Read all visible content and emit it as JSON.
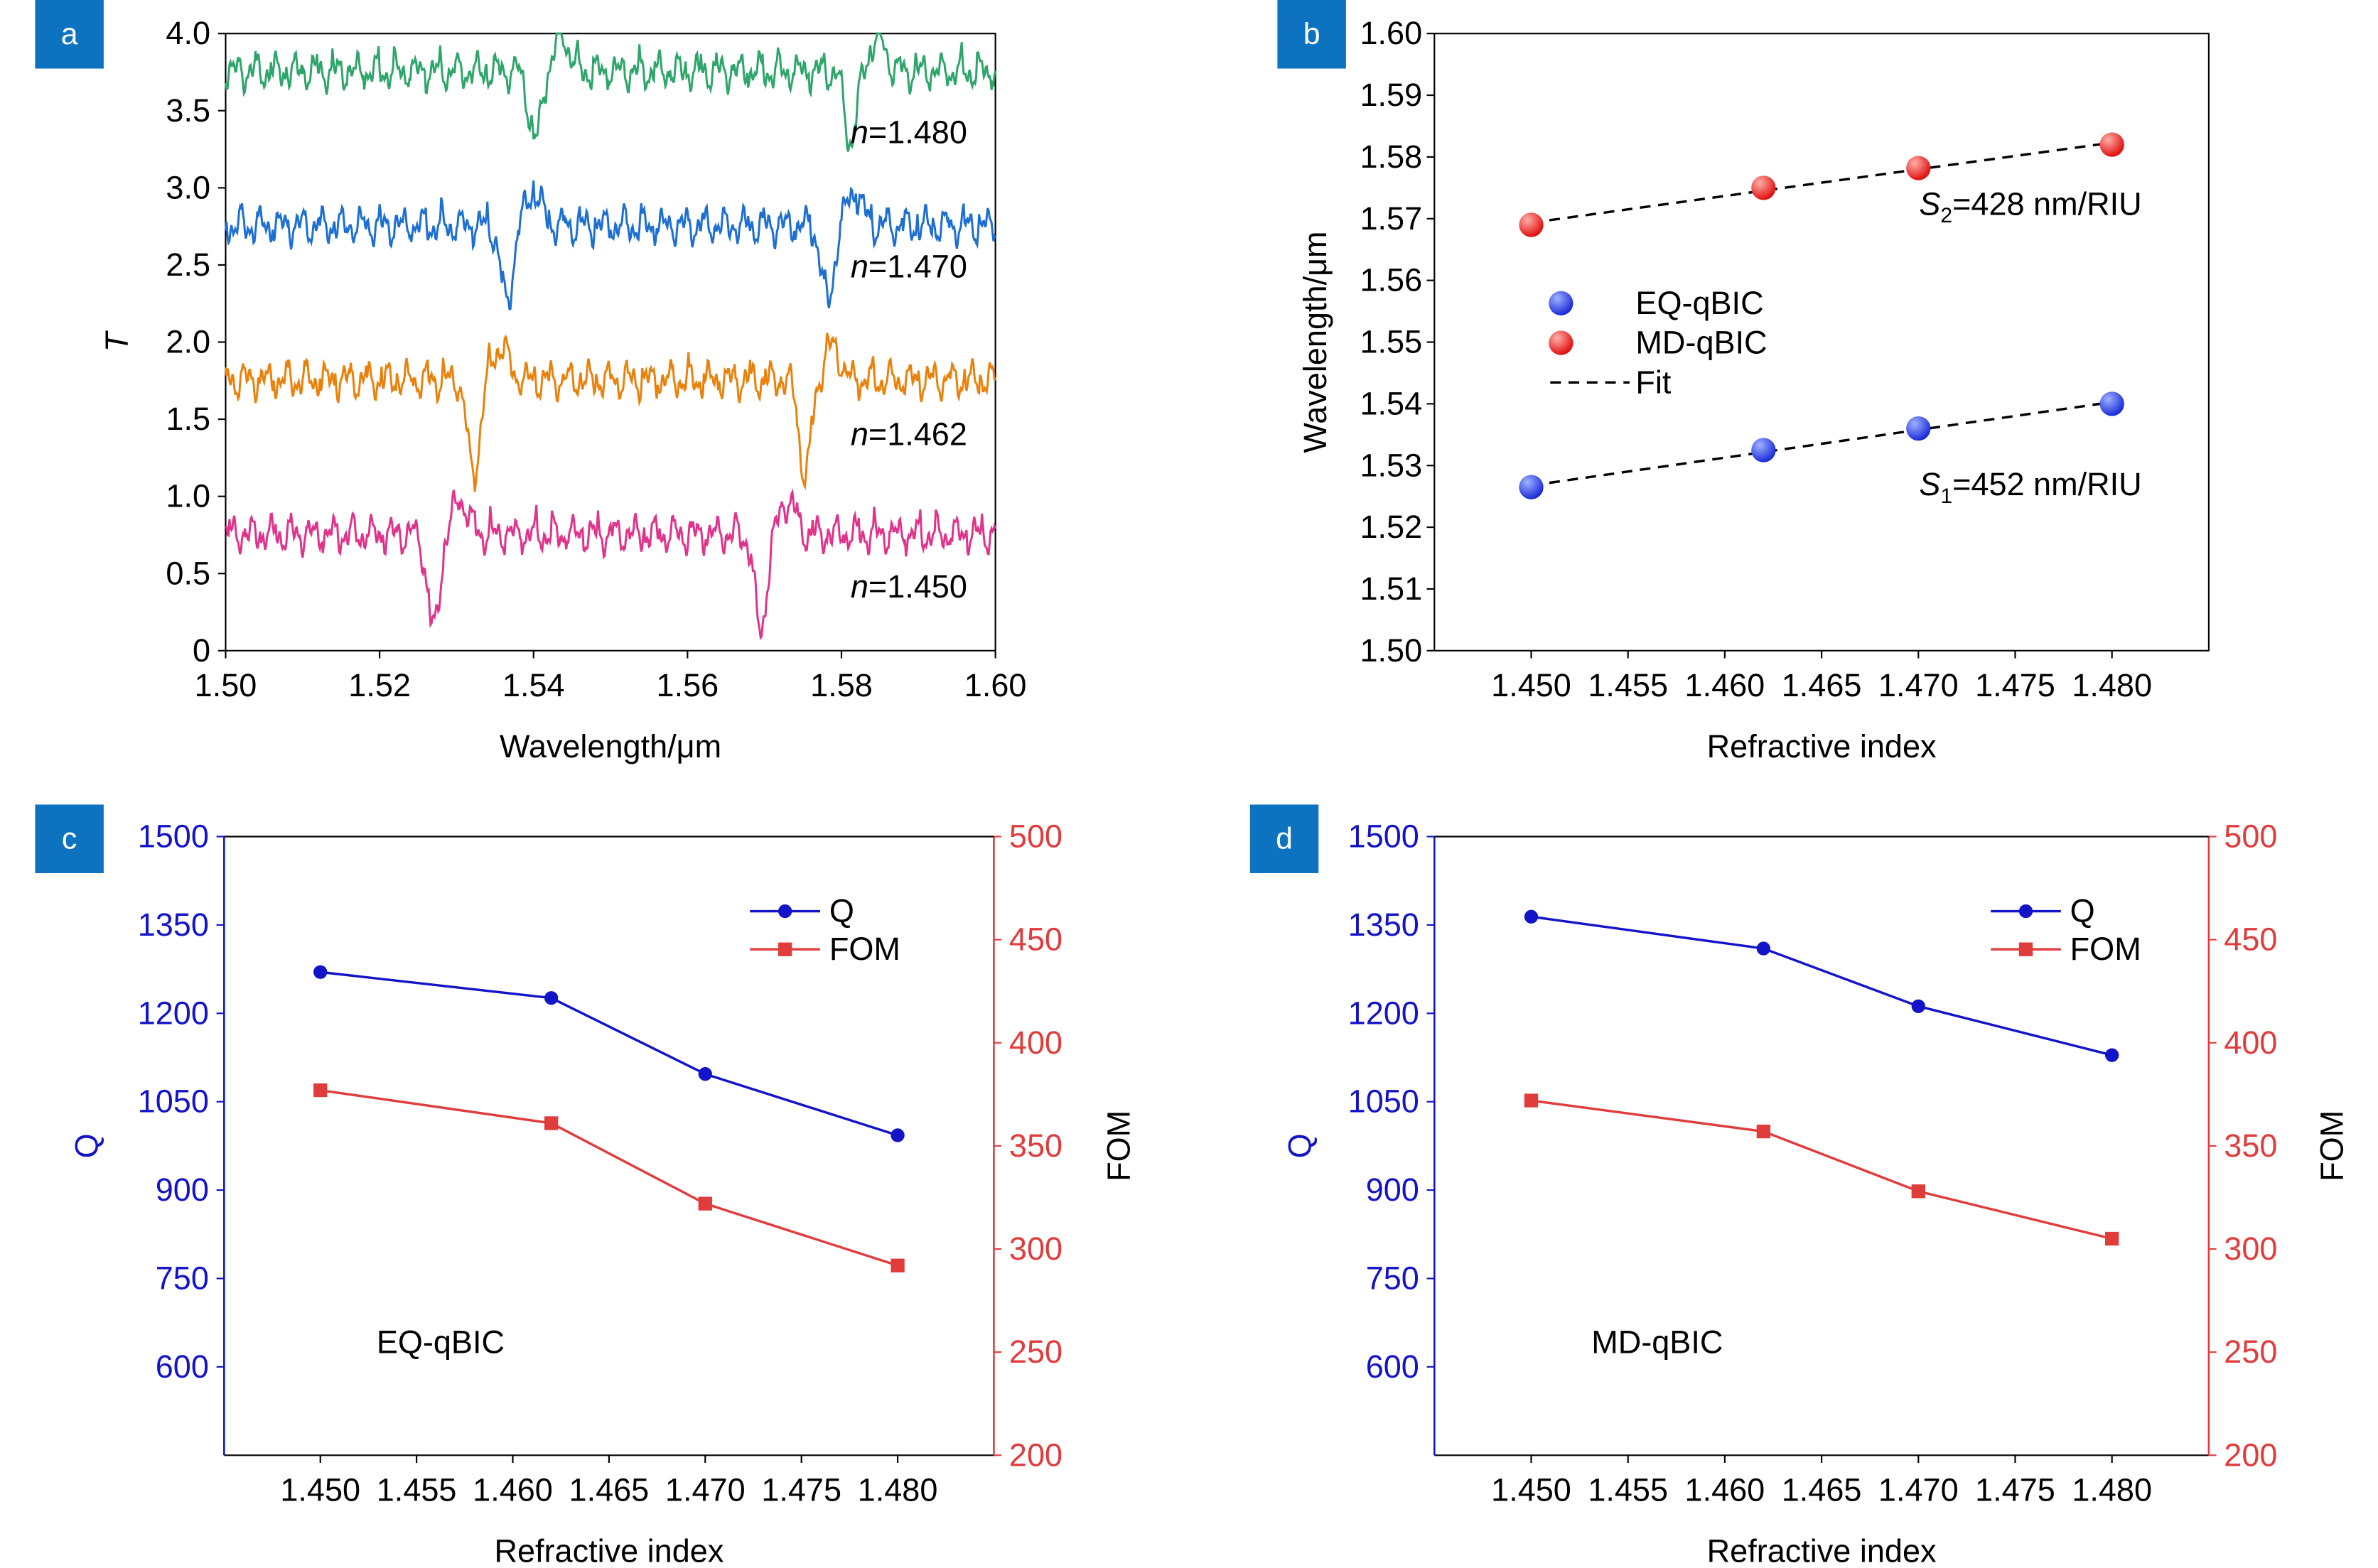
{
  "chart_data": [
    {
      "panel": "a",
      "type": "line",
      "xlabel": "Wavelength/μm",
      "ylabel": "T",
      "xlim": [
        1.5,
        1.6
      ],
      "ylim": [
        0,
        4.0
      ],
      "xticks": [
        "1.50",
        "1.52",
        "1.54",
        "1.56",
        "1.58",
        "1.60"
      ],
      "yticks": [
        "0",
        "0.5",
        "1.0",
        "1.5",
        "2.0",
        "2.5",
        "3.0",
        "3.5",
        "4.0"
      ],
      "series": [
        {
          "name": "n=1.450",
          "label_italic": "n",
          "label_rest": "=1.450",
          "color": "#e0338c",
          "offset": 0.0,
          "dips": [
            [
              1.527,
              0.62
            ],
            [
              1.5695,
              0.62
            ]
          ]
        },
        {
          "name": "n=1.462",
          "label_italic": "n",
          "label_rest": "=1.462",
          "color": "#e8820c",
          "offset": 1.0,
          "dips": [
            [
              1.5322,
              0.62
            ],
            [
              1.5753,
              0.62
            ]
          ]
        },
        {
          "name": "n=1.470",
          "label_italic": "n",
          "label_rest": "=1.470",
          "color": "#1d6fd1",
          "offset": 2.0,
          "dips": [
            [
              1.5365,
              0.5
            ],
            [
              1.5782,
              0.5
            ]
          ]
        },
        {
          "name": "n=1.480",
          "label_italic": "n",
          "label_rest": "=1.480",
          "color": "#2ea56a",
          "offset": 3.0,
          "dips": [
            [
              1.5402,
              0.45
            ],
            [
              1.5812,
              0.45
            ]
          ]
        }
      ]
    },
    {
      "panel": "b",
      "type": "scatter",
      "xlabel": "Refractive index",
      "ylabel": "Wavelength/μm",
      "xlim": [
        1.445,
        1.485
      ],
      "ylim": [
        1.5,
        1.6
      ],
      "xticks": [
        "1.450",
        "1.455",
        "1.460",
        "1.465",
        "1.470",
        "1.475",
        "1.480"
      ],
      "yticks": [
        "1.50",
        "1.51",
        "1.52",
        "1.53",
        "1.54",
        "1.55",
        "1.56",
        "1.57",
        "1.58",
        "1.59",
        "1.60"
      ],
      "legend": {
        "placement": "center-left",
        "entries": [
          "EQ-qBIC",
          "MD-qBIC",
          "Fit"
        ]
      },
      "series": [
        {
          "name": "EQ-qBIC",
          "color": "#1a2bd8",
          "x": [
            1.45,
            1.462,
            1.47,
            1.48
          ],
          "y": [
            1.5265,
            1.5325,
            1.536,
            1.54
          ]
        },
        {
          "name": "MD-qBIC",
          "color": "#e01010",
          "x": [
            1.45,
            1.462,
            1.47,
            1.48
          ],
          "y": [
            1.569,
            1.575,
            1.5782,
            1.582
          ]
        }
      ],
      "annotations": [
        {
          "italic": "S",
          "sub": "1",
          "rest": "=452 nm/RIU"
        },
        {
          "italic": "S",
          "sub": "2",
          "rest": "=428 nm/RIU"
        }
      ]
    },
    {
      "panel": "c",
      "type": "line",
      "xlabel": "Refractive index",
      "ylabel": "Q",
      "ylabel_right": "FOM",
      "annotation": "EQ-qBIC",
      "xlim": [
        1.445,
        1.485
      ],
      "ylim": [
        450,
        1500
      ],
      "ylim_right": [
        200,
        500
      ],
      "xticks": [
        "1.450",
        "1.455",
        "1.460",
        "1.465",
        "1.470",
        "1.475",
        "1.480"
      ],
      "yticks": [
        "600",
        "750",
        "900",
        "1050",
        "1200",
        "1350",
        "1500"
      ],
      "yticks_right": [
        "200",
        "250",
        "300",
        "350",
        "400",
        "450",
        "500"
      ],
      "legend": {
        "placement": "top-right",
        "entries": [
          "Q",
          "FOM"
        ]
      },
      "x": [
        1.45,
        1.462,
        1.47,
        1.48
      ],
      "series": [
        {
          "name": "Q",
          "axis": "left",
          "color": "#1313c8",
          "values": [
            1270,
            1226,
            1097,
            993
          ]
        },
        {
          "name": "FOM",
          "axis": "right",
          "color": "#e03c3c",
          "values": [
            377,
            361,
            322,
            292
          ]
        }
      ]
    },
    {
      "panel": "d",
      "type": "line",
      "xlabel": "Refractive index",
      "ylabel": "Q",
      "ylabel_right": "FOM",
      "annotation": "MD-qBIC",
      "xlim": [
        1.445,
        1.485
      ],
      "ylim": [
        450,
        1500
      ],
      "ylim_right": [
        200,
        500
      ],
      "xticks": [
        "1.450",
        "1.455",
        "1.460",
        "1.465",
        "1.470",
        "1.475",
        "1.480"
      ],
      "yticks": [
        "600",
        "750",
        "900",
        "1050",
        "1200",
        "1350",
        "1500"
      ],
      "yticks_right": [
        "200",
        "250",
        "300",
        "350",
        "400",
        "450",
        "500"
      ],
      "legend": {
        "placement": "top-right",
        "entries": [
          "Q",
          "FOM"
        ]
      },
      "x": [
        1.45,
        1.462,
        1.47,
        1.48
      ],
      "series": [
        {
          "name": "Q",
          "axis": "left",
          "color": "#1313c8",
          "values": [
            1364,
            1310,
            1212,
            1129
          ]
        },
        {
          "name": "FOM",
          "axis": "right",
          "color": "#e03c3c",
          "values": [
            372,
            357,
            328,
            305
          ]
        }
      ]
    }
  ],
  "panel_badge_color": "#0d72c0"
}
